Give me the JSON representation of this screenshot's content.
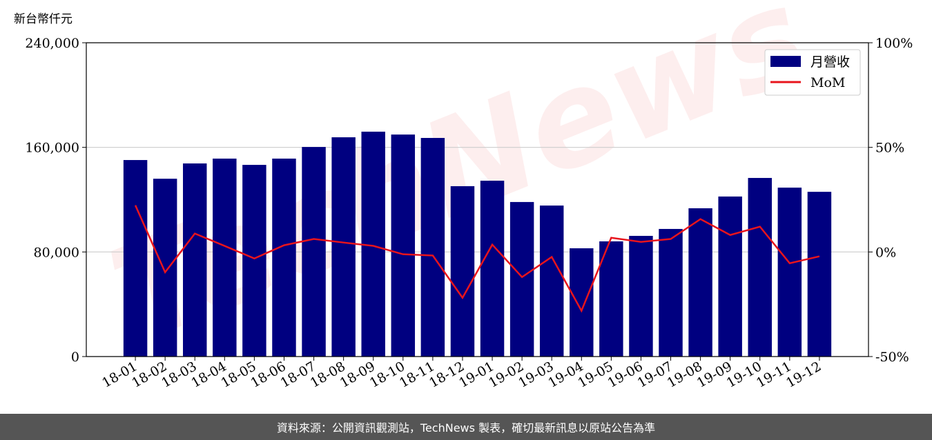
{
  "chart_data": {
    "type": "bar_line",
    "y_label": "新台幣仟元",
    "watermark": "TechNews",
    "footer": "資料來源：公開資訊觀測站，TechNews 製表，確切最新訊息以原站公告為準",
    "categories": [
      "18-01",
      "18-02",
      "18-03",
      "18-04",
      "18-05",
      "18-06",
      "18-07",
      "18-08",
      "18-09",
      "18-10",
      "18-11",
      "18-12",
      "19-01",
      "19-02",
      "19-03",
      "19-04",
      "19-05",
      "19-06",
      "19-07",
      "19-08",
      "19-09",
      "19-10",
      "19-11",
      "19-12"
    ],
    "series": [
      {
        "name": "月營收",
        "type": "bar",
        "color": "#000080",
        "values": [
          150300,
          136000,
          147700,
          151400,
          146600,
          151400,
          160300,
          167700,
          172000,
          169800,
          167200,
          130300,
          134500,
          118200,
          115500,
          82800,
          88100,
          92300,
          97600,
          113400,
          122400,
          136600,
          129200,
          126000
        ]
      },
      {
        "name": "MoM",
        "type": "line",
        "axis": "y2",
        "color": "#e8141c",
        "values": [
          22.3,
          -9.7,
          8.8,
          2.9,
          -3.1,
          3.2,
          6.2,
          4.5,
          2.9,
          -1.1,
          -1.7,
          -21.9,
          3.5,
          -12.0,
          -2.4,
          -28.1,
          6.8,
          4.8,
          6.2,
          15.7,
          8.1,
          12.1,
          -5.4,
          -2.1
        ]
      }
    ],
    "ylim": [
      0,
      240000
    ],
    "yticks": [
      0,
      {
        "value": 80000,
        "label": "80,000"
      },
      {
        "value": 160000,
        "label": "160,000"
      },
      {
        "value": 240000,
        "label": "240,000"
      }
    ],
    "y2lim": [
      -50,
      100
    ],
    "y2ticks": [
      {
        "value": -50,
        "label": "-50%"
      },
      {
        "value": 0,
        "label": "0%"
      },
      {
        "value": 50,
        "label": "50%"
      },
      {
        "value": 100,
        "label": "100%"
      }
    ],
    "grid": true,
    "legend": "upper right"
  }
}
